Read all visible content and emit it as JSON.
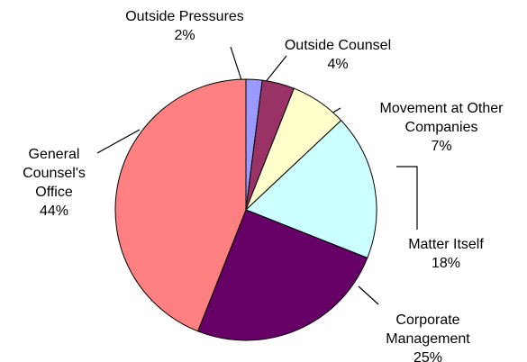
{
  "chart_data": {
    "type": "pie",
    "categories": [
      "Outside Pressures",
      "Outside Counsel",
      "Movement at Other Companies",
      "Matter Itself",
      "Corporate Management",
      "General Counsel's Office"
    ],
    "values": [
      2,
      4,
      7,
      18,
      25,
      44
    ],
    "value_labels": [
      "2%",
      "4%",
      "7%",
      "18%",
      "25%",
      "44%"
    ],
    "colors": [
      "#9999ff",
      "#993366",
      "#ffffcc",
      "#ccffff",
      "#660066",
      "#ff8080"
    ]
  }
}
